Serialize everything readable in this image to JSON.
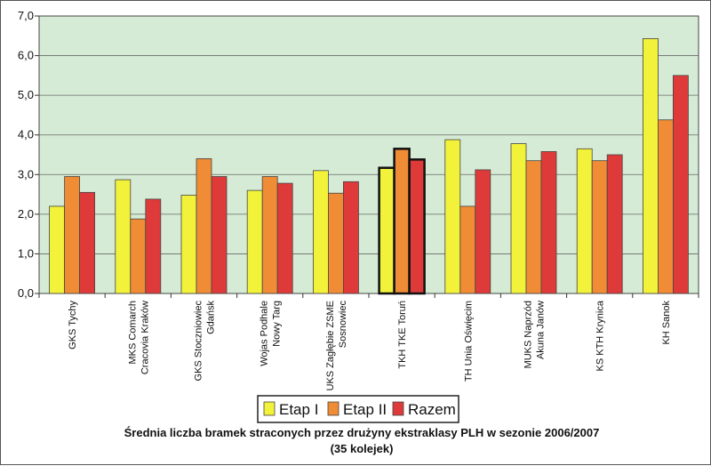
{
  "chart_data": {
    "type": "bar",
    "title": "Średnia liczba bramek straconych przez drużyny ekstraklasy PLH w sezonie 2006/2007",
    "subtitle": "(35 kolejek)",
    "xlabel": "",
    "ylabel": "",
    "ylim": [
      0,
      7
    ],
    "yticks": [
      "0,0",
      "1,0",
      "2,0",
      "3,0",
      "4,0",
      "5,0",
      "6,0",
      "7,0"
    ],
    "grid": true,
    "legend": "bottom-center",
    "highlight_category_index": 5,
    "categories": [
      [
        "GKS Tychy"
      ],
      [
        "MKS Comarch",
        "Cracovia Kraków"
      ],
      [
        "GKS Stoczniowiec",
        "Gdańsk"
      ],
      [
        "Wojas Podhale",
        "Nowy Targ"
      ],
      [
        "UKS Zagłębie ZSME",
        "Sosnowiec"
      ],
      [
        "TKH TKE Toruń"
      ],
      [
        "TH Unia Oświęcim"
      ],
      [
        "MUKS Naprzód",
        "Akuna Janów"
      ],
      [
        "KS KTH Krynica"
      ],
      [
        "KH Sanok"
      ]
    ],
    "series": [
      {
        "name": "Etap I",
        "color": "#f2f23a",
        "values": [
          2.2,
          2.87,
          2.48,
          2.6,
          3.1,
          3.17,
          3.88,
          3.78,
          3.65,
          6.43
        ]
      },
      {
        "name": "Etap II",
        "color": "#ef8c35",
        "values": [
          2.95,
          1.88,
          3.4,
          2.95,
          2.53,
          3.65,
          2.2,
          3.35,
          3.35,
          4.38
        ]
      },
      {
        "name": "Razem",
        "color": "#de3a3a",
        "values": [
          2.55,
          2.38,
          2.95,
          2.78,
          2.82,
          3.38,
          3.12,
          3.58,
          3.5,
          5.5
        ]
      }
    ],
    "plot_background": "#d5ebd5"
  }
}
